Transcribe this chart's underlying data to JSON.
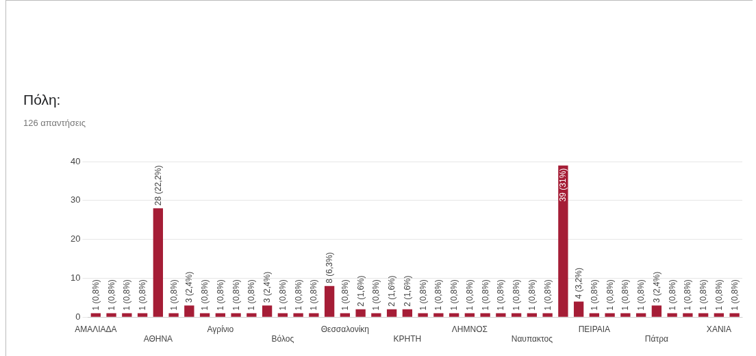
{
  "chart_data": {
    "type": "bar",
    "title": "Πόλη:",
    "subtitle": "126 απαντήσεις",
    "categories": [
      "ΑΜΑΛΙΑΔΑ",
      null,
      null,
      null,
      "ΑΘΗΝΑ",
      null,
      null,
      null,
      "Αγρίνιο",
      null,
      null,
      null,
      "Βόλος",
      null,
      null,
      null,
      "Θεσσαλονίκη",
      null,
      null,
      null,
      "ΚΡΗΤΗ",
      null,
      null,
      null,
      "ΛΗΜΝΟΣ",
      null,
      null,
      null,
      "Ναυπακτος",
      null,
      null,
      null,
      "ΠΕΙΡΑΙΑ",
      null,
      null,
      null,
      "Πάτρα",
      null,
      null,
      null,
      "ΧΑΝΙΑ",
      null
    ],
    "values": [
      1,
      1,
      1,
      1,
      28,
      1,
      3,
      1,
      1,
      1,
      1,
      3,
      1,
      1,
      1,
      8,
      1,
      2,
      1,
      2,
      2,
      1,
      1,
      1,
      1,
      1,
      1,
      1,
      1,
      1,
      39,
      4,
      1,
      1,
      1,
      1,
      3,
      1,
      1,
      1,
      1,
      1
    ],
    "value_labels": [
      "1 (0,8%)",
      "1 (0,8%)",
      "1 (0,8%)",
      "1 (0,8%)",
      "28 (22,2%)",
      "1 (0,8%)",
      "3 (2,4%)",
      "1 (0,8%)",
      "1 (0,8%)",
      "1 (0,8%)",
      "1 (0,8%)",
      "3 (2,4%)",
      "1 (0,8%)",
      "1 (0,8%)",
      "1 (0,8%)",
      "8 (6,3%)",
      "1 (0,8%)",
      "2 (1,6%)",
      "1 (0,8%)",
      "2 (1,6%)",
      "2 (1,6%)",
      "1 (0,8%)",
      "1 (0,8%)",
      "1 (0,8%)",
      "1 (0,8%)",
      "1 (0,8%)",
      "1 (0,8%)",
      "1 (0,8%)",
      "1 (0,8%)",
      "1 (0,8%)",
      "39 (31%)",
      "4 (3,2%)",
      "1 (0,8%)",
      "1 (0,8%)",
      "1 (0,8%)",
      "1 (0,8%)",
      "3 (2,4%)",
      "1 (0,8%)",
      "1 (0,8%)",
      "1 (0,8%)",
      "1 (0,8%)",
      "1 (0,8%)"
    ],
    "color": "#a51d36",
    "ylim": [
      0,
      40
    ],
    "yticks": [
      0,
      10,
      20,
      30,
      40
    ],
    "grid": "y",
    "legend": false
  }
}
